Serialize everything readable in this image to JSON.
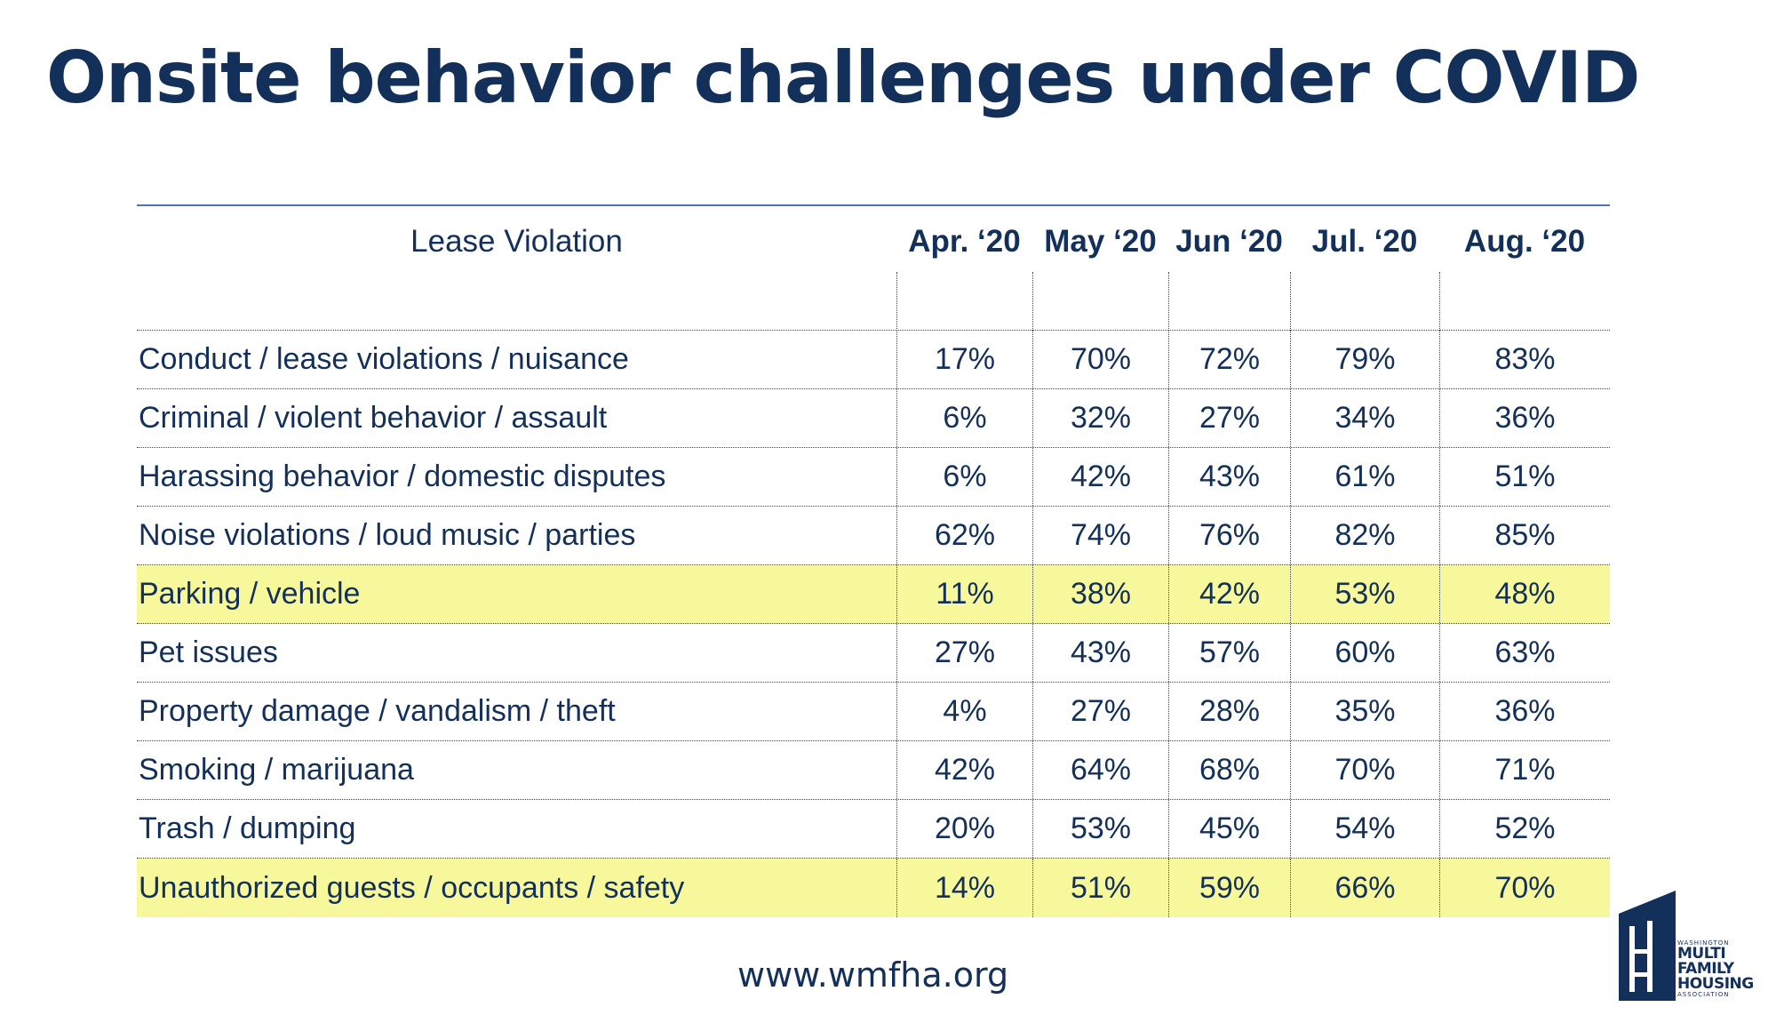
{
  "title": "Onsite behavior challenges under COVID",
  "table": {
    "header": {
      "label": "Lease Violation",
      "months": [
        "Apr. ‘20",
        "May ‘20",
        "Jun ‘20",
        "Jul. ‘20",
        "Aug. ‘20"
      ]
    },
    "rows": [
      {
        "label": "Conduct / lease violations / nuisance",
        "values": [
          "17%",
          "70%",
          "72%",
          "79%",
          "83%"
        ],
        "highlight": false
      },
      {
        "label": "Criminal / violent behavior / assault",
        "values": [
          "6%",
          "32%",
          "27%",
          "34%",
          "36%"
        ],
        "highlight": false
      },
      {
        "label": "Harassing behavior / domestic disputes",
        "values": [
          "6%",
          "42%",
          "43%",
          "61%",
          "51%"
        ],
        "highlight": false
      },
      {
        "label": "Noise violations / loud music / parties",
        "values": [
          "62%",
          "74%",
          "76%",
          "82%",
          "85%"
        ],
        "highlight": false
      },
      {
        "label": "Parking / vehicle",
        "values": [
          "11%",
          "38%",
          "42%",
          "53%",
          "48%"
        ],
        "highlight": true
      },
      {
        "label": "Pet issues",
        "values": [
          "27%",
          "43%",
          "57%",
          "60%",
          "63%"
        ],
        "highlight": false
      },
      {
        "label": "Property damage / vandalism / theft",
        "values": [
          "4%",
          "27%",
          "28%",
          "35%",
          "36%"
        ],
        "highlight": false
      },
      {
        "label": "Smoking / marijuana",
        "values": [
          "42%",
          "64%",
          "68%",
          "70%",
          "71%"
        ],
        "highlight": false
      },
      {
        "label": "Trash / dumping",
        "values": [
          "20%",
          "53%",
          "45%",
          "54%",
          "52%"
        ],
        "highlight": false
      },
      {
        "label": "Unauthorized guests / occupants / safety",
        "values": [
          "14%",
          "51%",
          "59%",
          "66%",
          "70%"
        ],
        "highlight": true
      }
    ]
  },
  "footer": {
    "url": "www.wmfha.org"
  },
  "logo": {
    "line1": "WASHINGTON",
    "line2": "MULTI",
    "line3": "FAMILY",
    "line4": "HOUSING",
    "line5": "ASSOCIATION"
  },
  "colors": {
    "text": "#13305a",
    "highlight": "#f7f89c",
    "rule": "#4f73b8"
  }
}
